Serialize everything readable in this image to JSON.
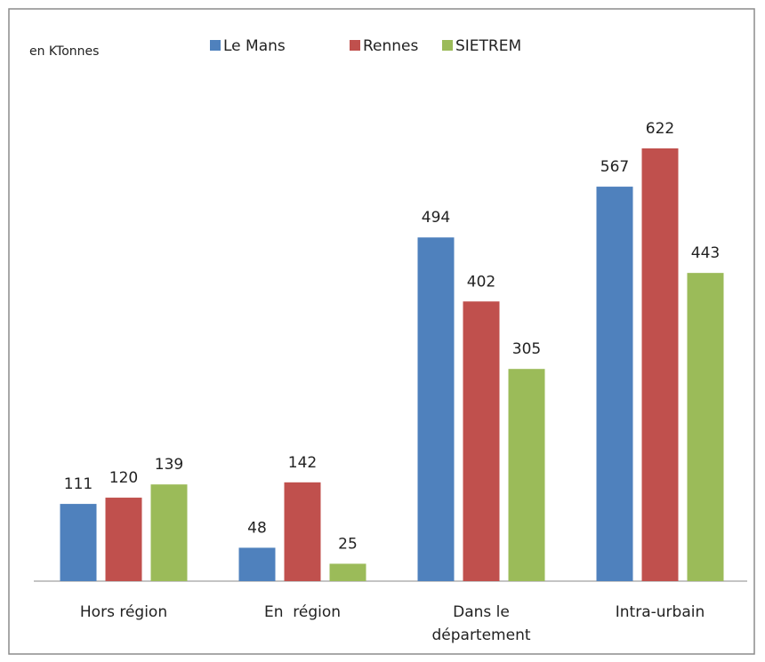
{
  "chart_data": {
    "type": "bar",
    "subtitle": "en KTonnes",
    "categories": [
      "Hors région",
      "En  région",
      "Dans le département",
      "Intra-urbain"
    ],
    "series": [
      {
        "name": "Le Mans",
        "color": "#4f81bd",
        "values": [
          111,
          48,
          494,
          567
        ]
      },
      {
        "name": "Rennes",
        "color": "#c0504d",
        "values": [
          120,
          142,
          402,
          622
        ]
      },
      {
        "name": "SIETREM",
        "color": "#9bbb59",
        "values": [
          139,
          25,
          305,
          443
        ]
      }
    ],
    "legend": "top"
  }
}
